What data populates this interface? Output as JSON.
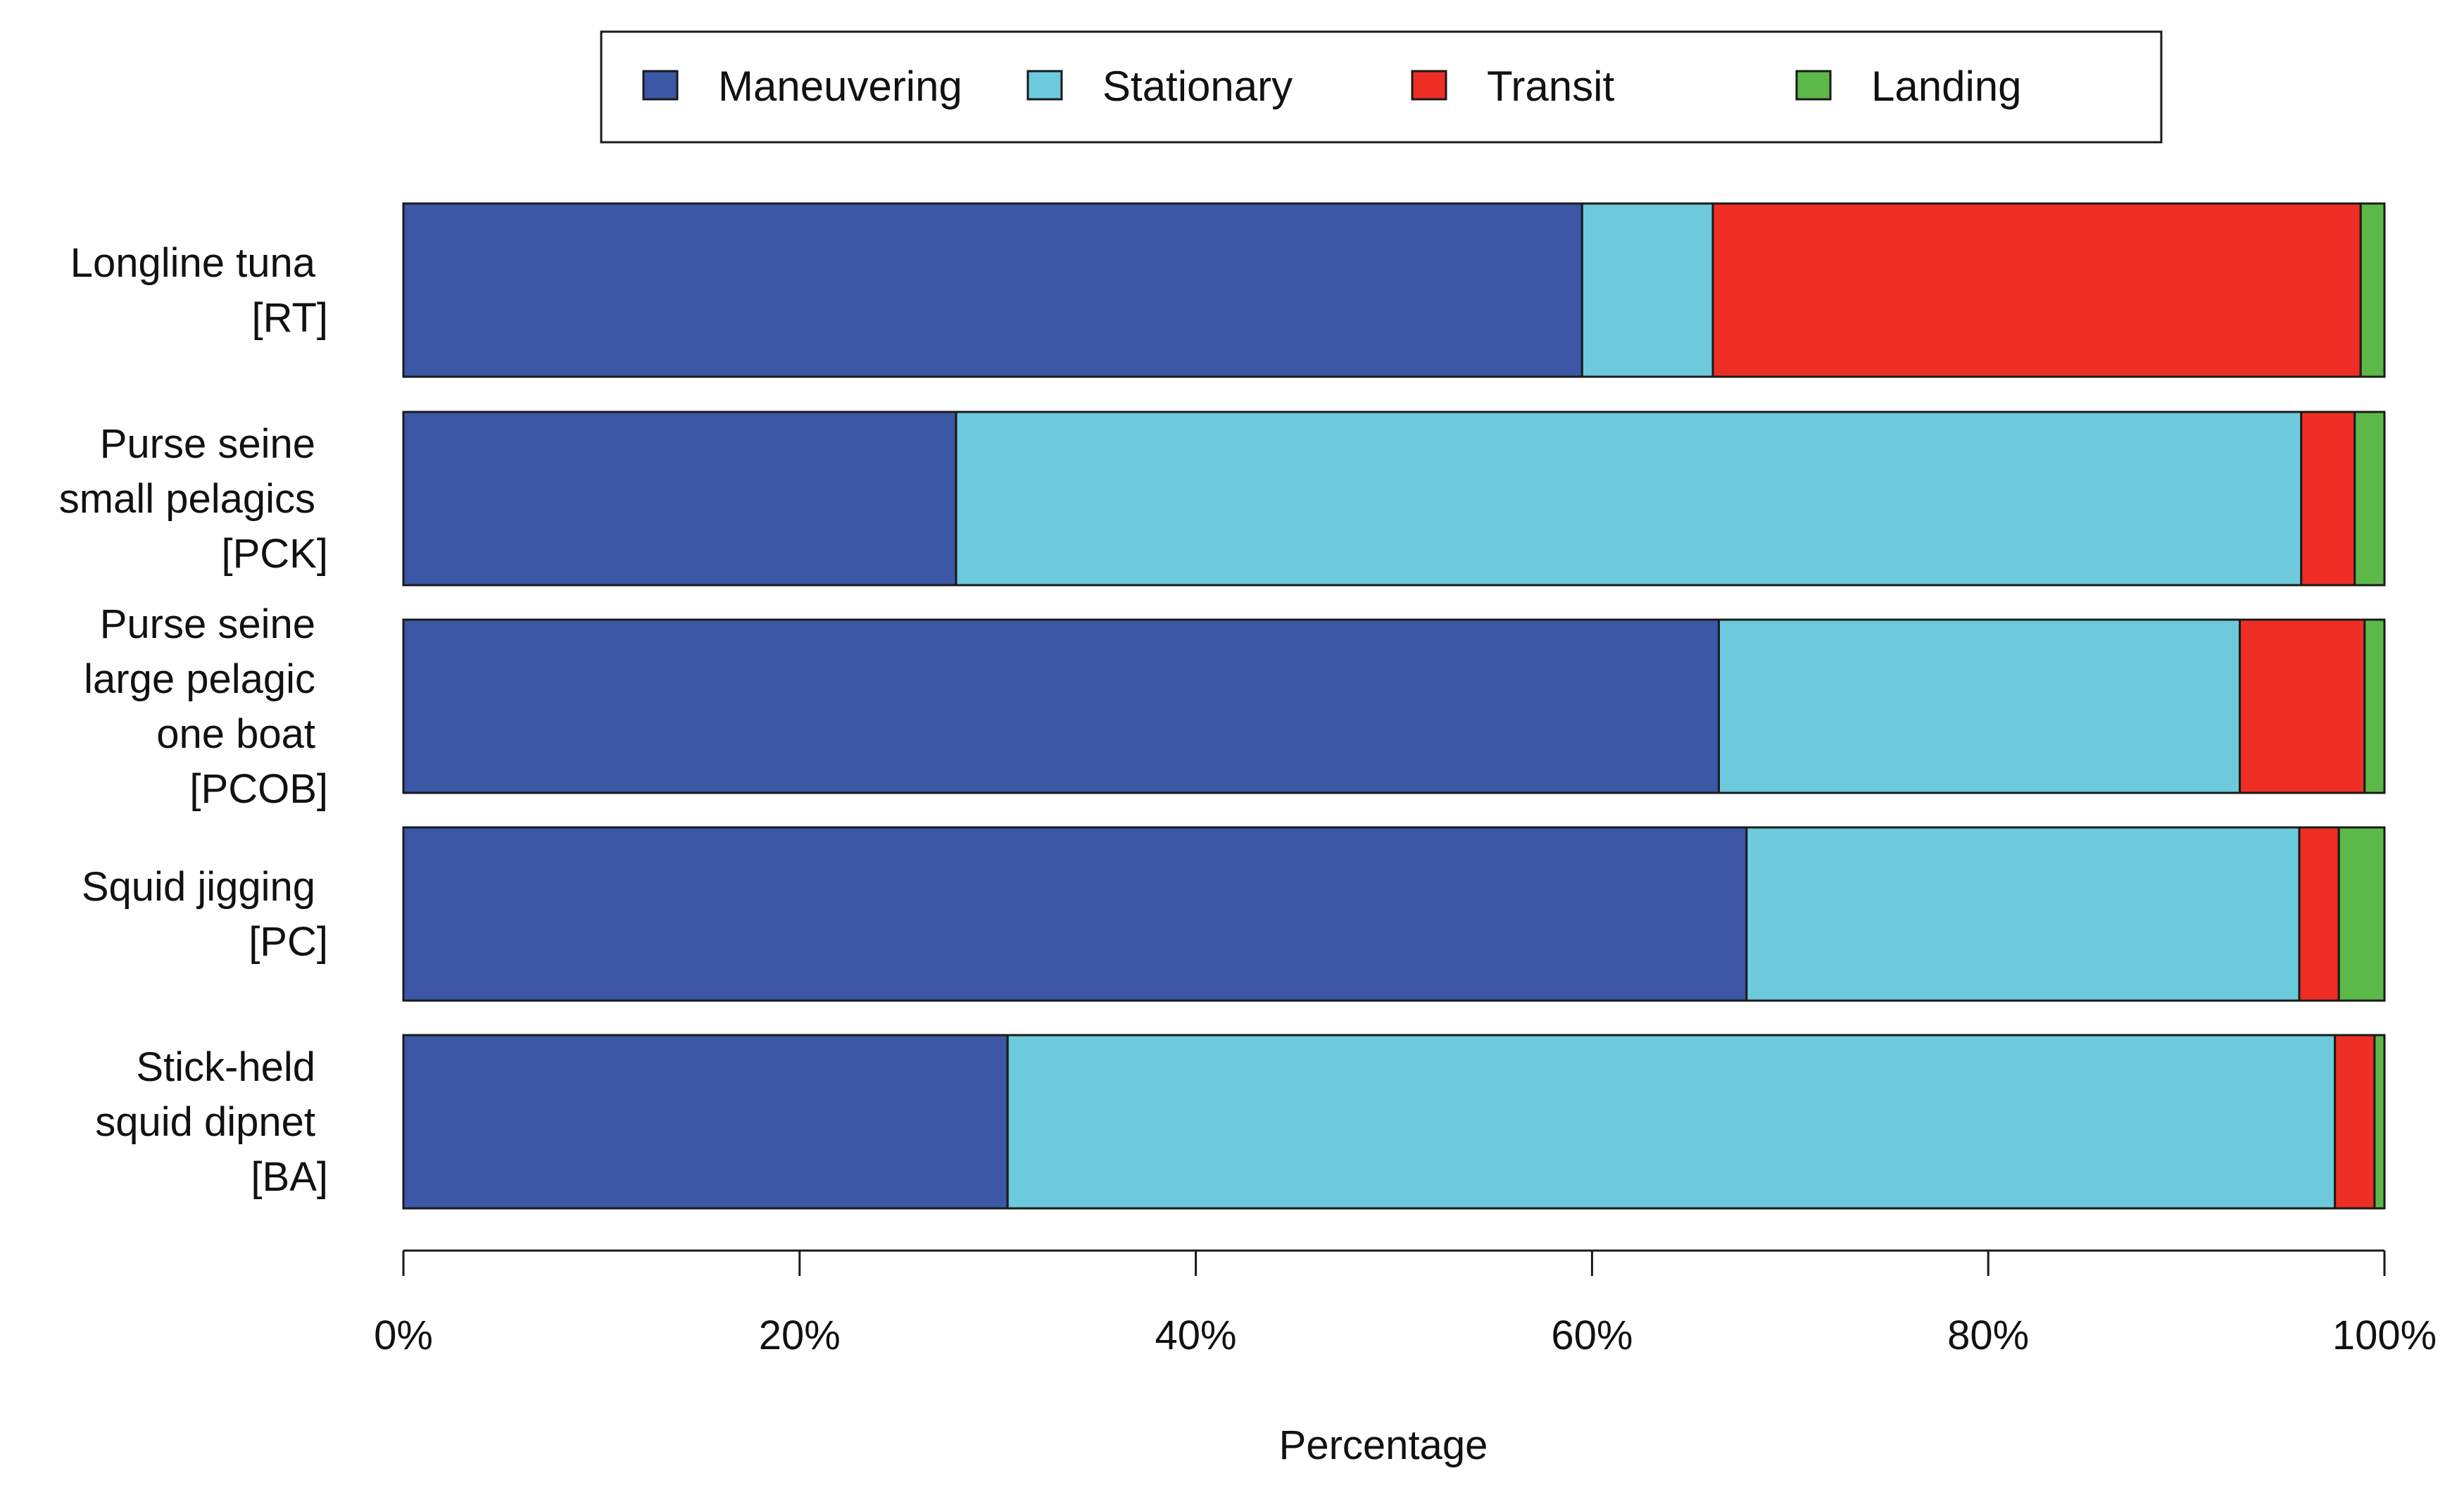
{
  "chart_data": {
    "type": "bar",
    "orientation": "horizontal",
    "stacked": true,
    "percent": true,
    "title": "",
    "xlabel": "Percentage",
    "ylabel": "",
    "xlim": [
      0,
      100
    ],
    "grid": false,
    "legend_position": "top",
    "x_ticks": [
      "0%",
      "20%",
      "40%",
      "60%",
      "80%",
      "100%"
    ],
    "x_tick_values": [
      0,
      20,
      40,
      60,
      80,
      100
    ],
    "categories": [
      [
        "Longline tuna",
        "[RT]"
      ],
      [
        "Purse seine",
        "small pelagics",
        "[PCK]"
      ],
      [
        "Purse seine",
        "large pelagic",
        "one boat",
        "[PCOB]"
      ],
      [
        "Squid jigging",
        "[PC]"
      ],
      [
        "Stick-held",
        "squid dipnet",
        "[BA]"
      ]
    ],
    "series": [
      {
        "name": "Maneuvering",
        "color": "#3c57a6",
        "values": [
          59.5,
          27.9,
          66.4,
          67.8,
          30.5
        ]
      },
      {
        "name": "Stationary",
        "color": "#6ccadc",
        "values": [
          6.6,
          67.9,
          26.3,
          27.9,
          67.0
        ]
      },
      {
        "name": "Transit",
        "color": "#ee2e24",
        "values": [
          32.7,
          2.7,
          6.3,
          2.0,
          2.0
        ]
      },
      {
        "name": "Landing",
        "color": "#5cb947",
        "values": [
          1.2,
          1.5,
          1.0,
          2.3,
          0.5
        ]
      }
    ]
  }
}
